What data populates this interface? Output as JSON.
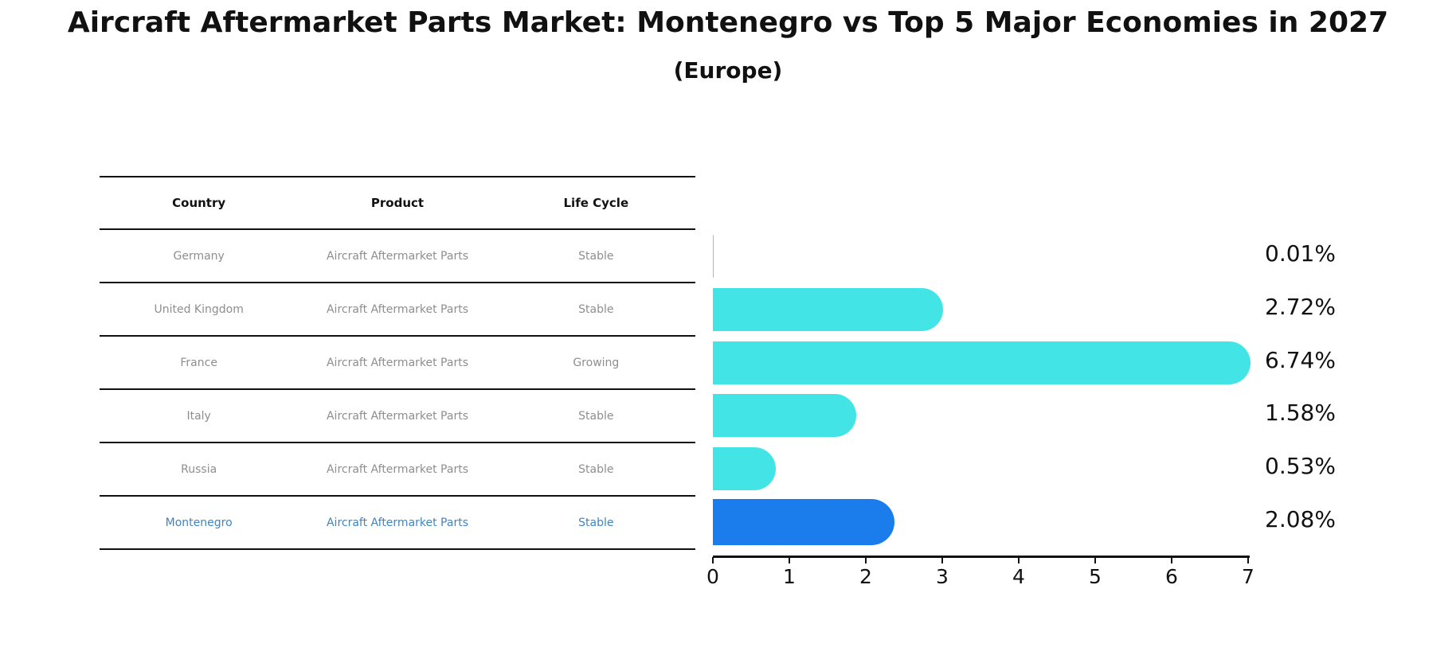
{
  "title": "Aircraft Aftermarket Parts Market: Montenegro vs Top 5 Major Economies in 2027",
  "subtitle": "(Europe)",
  "table": {
    "headers": [
      "Country",
      "Product",
      "Life Cycle"
    ],
    "rows": [
      {
        "country": "Germany",
        "product": "Aircraft Aftermarket Parts",
        "life_cycle": "Stable",
        "highlight": false
      },
      {
        "country": "United Kingdom",
        "product": "Aircraft Aftermarket Parts",
        "life_cycle": "Stable",
        "highlight": false
      },
      {
        "country": "France",
        "product": "Aircraft Aftermarket Parts",
        "life_cycle": "Growing",
        "highlight": false
      },
      {
        "country": "Italy",
        "product": "Aircraft Aftermarket Parts",
        "life_cycle": "Stable",
        "highlight": false
      },
      {
        "country": "Russia",
        "product": "Aircraft Aftermarket Parts",
        "life_cycle": "Stable",
        "highlight": false
      },
      {
        "country": "Montenegro",
        "product": "Aircraft Aftermarket Parts",
        "life_cycle": "Stable",
        "highlight": true
      }
    ]
  },
  "chart_data": {
    "type": "bar",
    "orientation": "horizontal",
    "title": "Aircraft Aftermarket Parts Market: Montenegro vs Top 5 Major Economies in 2027",
    "subtitle": "(Europe)",
    "categories": [
      "Germany",
      "United Kingdom",
      "France",
      "Italy",
      "Russia",
      "Montenegro"
    ],
    "values": [
      0.01,
      2.72,
      6.74,
      1.58,
      0.53,
      2.08
    ],
    "value_labels": [
      "0.01%",
      "2.72%",
      "6.74%",
      "1.58%",
      "0.53%",
      "2.08%"
    ],
    "xlabel": "",
    "ylabel": "",
    "xlim": [
      0,
      7
    ],
    "x_ticks": [
      0,
      1,
      2,
      3,
      4,
      5,
      6,
      7
    ],
    "grid": false,
    "legend": false,
    "highlight_index": 5,
    "highlight_style": "dotted-border"
  },
  "colors": {
    "bar": "#43E4E6",
    "highlight_bar": "#1B7CEC",
    "highlight_text": "#3D85C6",
    "table_text": "#8E8E8E",
    "axis_and_titles": "#111111",
    "background": "#FFFFFF"
  }
}
